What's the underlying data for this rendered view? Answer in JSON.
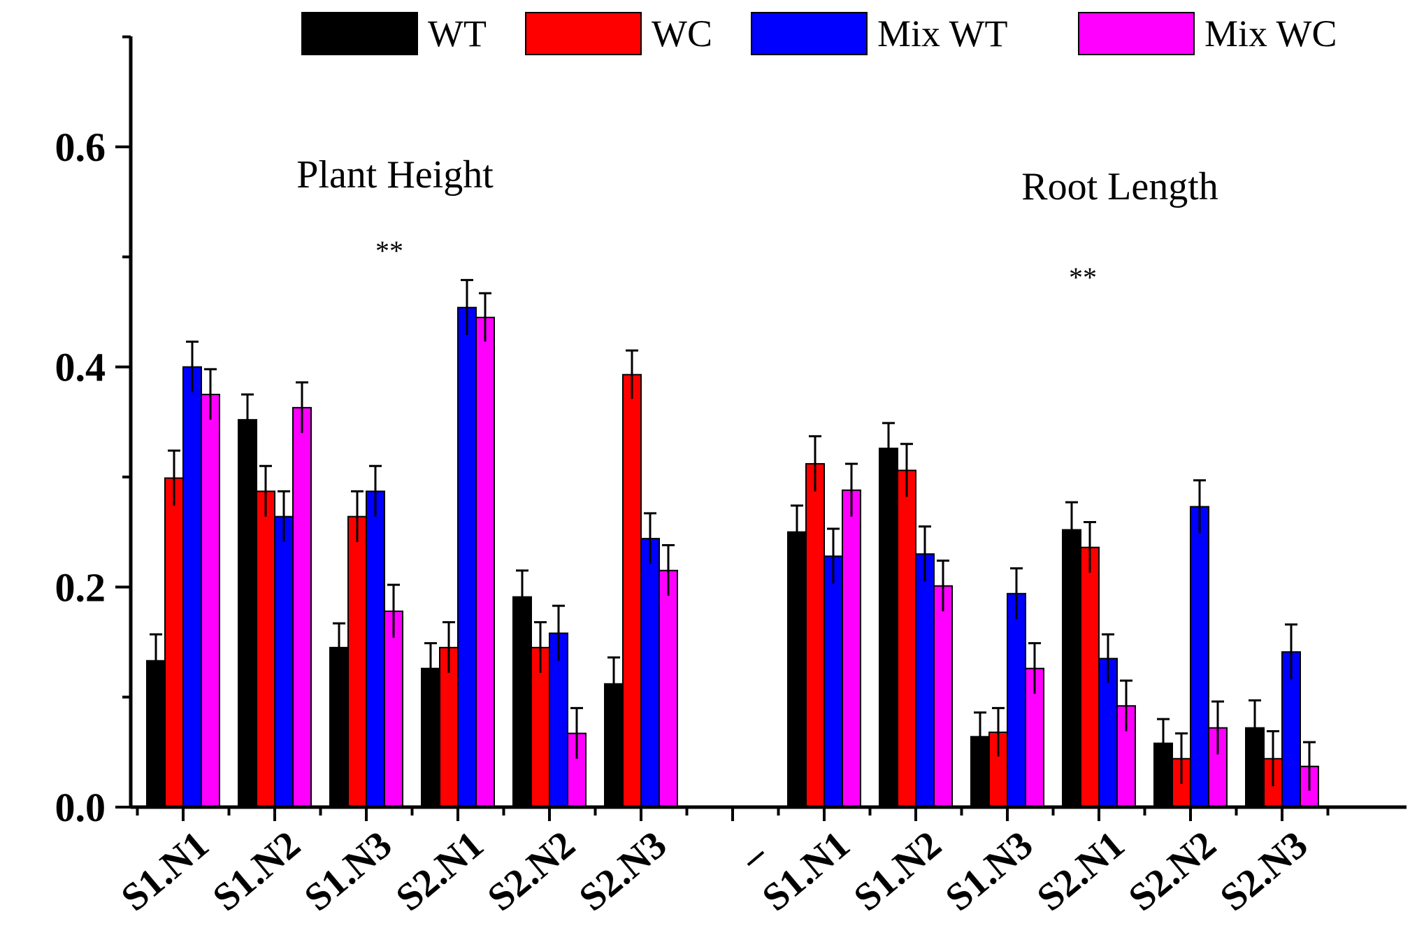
{
  "chart_data": {
    "type": "bar",
    "title": "",
    "xlabel": "",
    "ylabel": "",
    "ylim": [
      0,
      0.7
    ],
    "yticks": [
      0.0,
      0.2,
      0.4,
      0.6
    ],
    "ytick_labels": [
      "0.0",
      "0.2",
      "0.4",
      "0.6"
    ],
    "categories": [
      "S1.N1",
      "S1.N2",
      "S1.N3",
      "S2.N1",
      "S2.N2",
      "S2.N3",
      "_",
      "S1.N1",
      "S1.N2",
      "S1.N3",
      "S2.N1",
      "S2.N2",
      "S2.N3"
    ],
    "legend_position": "top",
    "series": [
      {
        "name": "WT",
        "color": "#000000",
        "values": [
          0.133,
          0.352,
          0.145,
          0.126,
          0.191,
          0.112,
          null,
          0.25,
          0.326,
          0.064,
          0.252,
          0.058,
          0.072
        ],
        "errors": [
          0.024,
          0.023,
          0.022,
          0.023,
          0.024,
          0.024,
          null,
          0.024,
          0.023,
          0.022,
          0.025,
          0.022,
          0.025
        ]
      },
      {
        "name": "WC",
        "color": "#ff0000",
        "values": [
          0.299,
          0.287,
          0.264,
          0.145,
          0.145,
          0.393,
          null,
          0.312,
          0.306,
          0.068,
          0.236,
          0.044,
          0.044
        ],
        "errors": [
          0.025,
          0.023,
          0.023,
          0.023,
          0.023,
          0.022,
          null,
          0.025,
          0.024,
          0.022,
          0.023,
          0.023,
          0.025
        ]
      },
      {
        "name": "Mix WT",
        "color": "#0000ff",
        "values": [
          0.4,
          0.264,
          0.287,
          0.454,
          0.158,
          0.244,
          null,
          0.228,
          0.23,
          0.194,
          0.135,
          0.273,
          0.141
        ],
        "errors": [
          0.023,
          0.023,
          0.023,
          0.025,
          0.025,
          0.023,
          null,
          0.025,
          0.025,
          0.023,
          0.022,
          0.024,
          0.025
        ]
      },
      {
        "name": "Mix WC",
        "color": "#ff00ff",
        "values": [
          0.375,
          0.363,
          0.178,
          0.445,
          0.067,
          0.215,
          null,
          0.288,
          0.201,
          0.126,
          0.092,
          0.072,
          0.037
        ],
        "errors": [
          0.023,
          0.023,
          0.024,
          0.022,
          0.023,
          0.023,
          null,
          0.024,
          0.023,
          0.023,
          0.023,
          0.024,
          0.022
        ]
      }
    ],
    "annotations": [
      {
        "text": "Plant Height",
        "group": "left"
      },
      {
        "text": "Root Length",
        "group": "right"
      }
    ],
    "significance": [
      {
        "text": "**",
        "group": "left"
      },
      {
        "text": "**",
        "group": "right"
      }
    ]
  }
}
